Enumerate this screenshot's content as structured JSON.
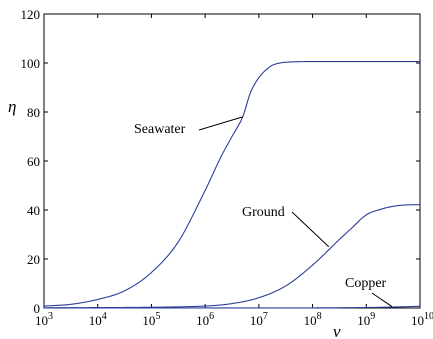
{
  "chart_data": {
    "type": "line",
    "title": "",
    "xlabel": "ν",
    "ylabel": "η",
    "xscale": "log",
    "xlim": [
      1000,
      10000000000
    ],
    "ylim": [
      0,
      120
    ],
    "grid": false,
    "line_color": "#2a3f9a",
    "x_ticks": [
      {
        "base": "10",
        "exp": "3",
        "value": 1000
      },
      {
        "base": "10",
        "exp": "4",
        "value": 10000
      },
      {
        "base": "10",
        "exp": "5",
        "value": 100000
      },
      {
        "base": "10",
        "exp": "6",
        "value": 1000000
      },
      {
        "base": "10",
        "exp": "7",
        "value": 10000000
      },
      {
        "base": "10",
        "exp": "8",
        "value": 100000000
      },
      {
        "base": "10",
        "exp": "9",
        "value": 1000000000
      },
      {
        "base": "10",
        "exp": "10",
        "value": 10000000000
      }
    ],
    "y_ticks": [
      {
        "label": "0",
        "value": 0
      },
      {
        "label": "20",
        "value": 20
      },
      {
        "label": "40",
        "value": 40
      },
      {
        "label": "60",
        "value": 60
      },
      {
        "label": "80",
        "value": 80
      },
      {
        "label": "100",
        "value": 100
      },
      {
        "label": "120",
        "value": 120
      }
    ],
    "series": [
      {
        "name": "Seawater",
        "x": [
          1000,
          3160,
          10000,
          31600,
          100000,
          316000,
          1000000,
          2000000,
          3160000,
          5000000,
          7000000,
          10000000,
          15000000,
          20000000,
          31600000,
          100000000,
          1000000000,
          10000000000
        ],
        "y": [
          0.8,
          1.5,
          3.5,
          7,
          14.5,
          27,
          48,
          62,
          70,
          78,
          88,
          94,
          98,
          99.5,
          100.3,
          100.6,
          100.6,
          100.6
        ]
      },
      {
        "name": "Ground",
        "x": [
          1000,
          100000,
          1000000,
          3160000,
          10000000,
          31600000,
          100000000,
          316000000,
          500000000,
          1000000000,
          2000000000,
          3160000000,
          5000000000,
          10000000000
        ],
        "y": [
          0.1,
          0.3,
          0.8,
          1.8,
          4.2,
          9,
          17.5,
          28,
          32,
          38,
          40.5,
          41.5,
          42,
          42.2
        ]
      },
      {
        "name": "Copper",
        "x": [
          1000,
          1000000,
          100000000,
          1000000000,
          3160000000,
          10000000000
        ],
        "y": [
          0,
          0.01,
          0.05,
          0.2,
          0.4,
          0.7
        ]
      }
    ],
    "annotations": [
      {
        "text": "Seawater",
        "series": "Seawater",
        "point": [
          5000000,
          78
        ]
      },
      {
        "text": "Ground",
        "series": "Ground",
        "point": [
          200000000,
          25
        ]
      },
      {
        "text": "Copper",
        "series": "Copper",
        "point": [
          3000000000,
          0.6
        ]
      }
    ]
  }
}
